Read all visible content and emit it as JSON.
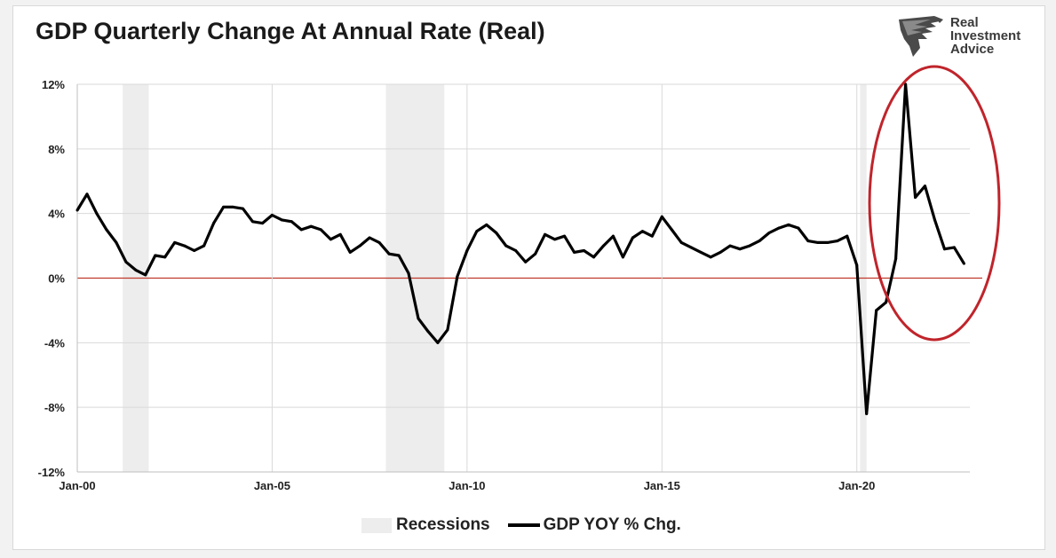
{
  "chart_data": {
    "type": "line",
    "title": "GDP Quarterly Change At Annual Rate (Real)",
    "xlabel": "",
    "ylabel": "",
    "x_tick_labels": [
      "Jan-00",
      "Jan-05",
      "Jan-10",
      "Jan-15",
      "Jan-20"
    ],
    "y_tick_labels": [
      "12%",
      "8%",
      "4%",
      "0%",
      "-4%",
      "-8%",
      "-12%"
    ],
    "ylim": [
      -12,
      12
    ],
    "xlim": [
      "2000-01",
      "2022-10"
    ],
    "grid": "horizontal",
    "zero_line_color": "#c0392b",
    "line_color": "#000000",
    "recession_color": "#ededed",
    "highlight_ellipse_color": "#c0242b",
    "legend_placement": "bottom",
    "legend": {
      "recessions_label": "Recessions",
      "series_label": "GDP YOY % Chg."
    },
    "recessions": [
      {
        "start": "2001-03",
        "end": "2001-11"
      },
      {
        "start": "2007-12",
        "end": "2009-06"
      },
      {
        "start": "2020-02",
        "end": "2020-04"
      }
    ],
    "series": [
      {
        "name": "GDP YOY % Chg.",
        "x": [
          "2000-01",
          "2000-04",
          "2000-07",
          "2000-10",
          "2001-01",
          "2001-04",
          "2001-07",
          "2001-10",
          "2002-01",
          "2002-04",
          "2002-07",
          "2002-10",
          "2003-01",
          "2003-04",
          "2003-07",
          "2003-10",
          "2004-01",
          "2004-04",
          "2004-07",
          "2004-10",
          "2005-01",
          "2005-04",
          "2005-07",
          "2005-10",
          "2006-01",
          "2006-04",
          "2006-07",
          "2006-10",
          "2007-01",
          "2007-04",
          "2007-07",
          "2007-10",
          "2008-01",
          "2008-04",
          "2008-07",
          "2008-10",
          "2009-01",
          "2009-04",
          "2009-07",
          "2009-10",
          "2010-01",
          "2010-04",
          "2010-07",
          "2010-10",
          "2011-01",
          "2011-04",
          "2011-07",
          "2011-10",
          "2012-01",
          "2012-04",
          "2012-07",
          "2012-10",
          "2013-01",
          "2013-04",
          "2013-07",
          "2013-10",
          "2014-01",
          "2014-04",
          "2014-07",
          "2014-10",
          "2015-01",
          "2015-04",
          "2015-07",
          "2015-10",
          "2016-01",
          "2016-04",
          "2016-07",
          "2016-10",
          "2017-01",
          "2017-04",
          "2017-07",
          "2017-10",
          "2018-01",
          "2018-04",
          "2018-07",
          "2018-10",
          "2019-01",
          "2019-04",
          "2019-07",
          "2019-10",
          "2020-01",
          "2020-04",
          "2020-07",
          "2020-10",
          "2021-01",
          "2021-04",
          "2021-07",
          "2021-10",
          "2022-01",
          "2022-04",
          "2022-07",
          "2022-10"
        ],
        "values": [
          4.2,
          5.2,
          4.0,
          3.0,
          2.2,
          1.0,
          0.5,
          0.2,
          1.4,
          1.3,
          2.2,
          2.0,
          1.7,
          2.0,
          3.4,
          4.4,
          4.4,
          4.3,
          3.5,
          3.4,
          3.9,
          3.6,
          3.5,
          3.0,
          3.2,
          3.0,
          2.4,
          2.7,
          1.6,
          2.0,
          2.5,
          2.2,
          1.5,
          1.4,
          0.3,
          -2.5,
          -3.3,
          -4.0,
          -3.2,
          0.1,
          1.7,
          2.9,
          3.3,
          2.8,
          2.0,
          1.7,
          1.0,
          1.5,
          2.7,
          2.4,
          2.6,
          1.6,
          1.7,
          1.3,
          2.0,
          2.6,
          1.3,
          2.5,
          2.9,
          2.6,
          3.8,
          3.0,
          2.2,
          1.9,
          1.6,
          1.3,
          1.6,
          2.0,
          1.8,
          2.0,
          2.3,
          2.8,
          3.1,
          3.3,
          3.1,
          2.3,
          2.2,
          2.2,
          2.3,
          2.6,
          0.8,
          -8.4,
          -2.0,
          -1.5,
          1.2,
          12.0,
          5.0,
          5.7,
          3.6,
          1.8,
          1.9,
          0.9
        ]
      }
    ]
  },
  "brand": {
    "line1": "Real",
    "line2": "Investment",
    "line3": "Advice",
    "logo_icon": "eagle-icon"
  }
}
